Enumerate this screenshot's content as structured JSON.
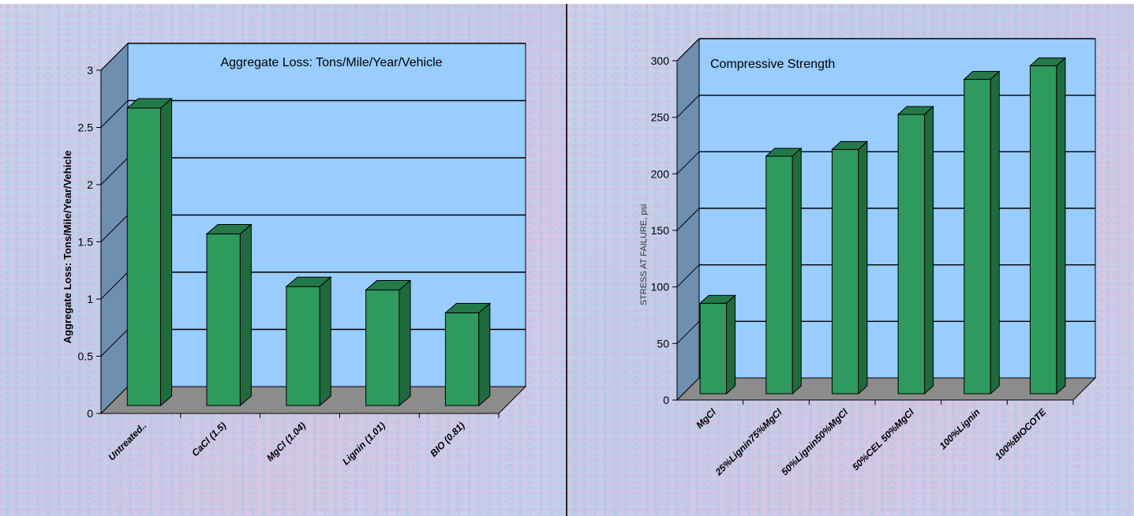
{
  "chart_data": [
    {
      "type": "bar",
      "title": "Aggregate Loss: Tons/Mile/Year/Vehicle",
      "ylabel": "Aggregate Loss: Tons/Mile/Year/Vehicle",
      "xlabel": "",
      "categories": [
        "Untreated..",
        "CaCl (1.5)",
        "MgCl (1.04)",
        "Lignin (1.01)",
        "BIO (0.81)"
      ],
      "values": [
        2.6,
        1.5,
        1.04,
        1.01,
        0.81
      ],
      "ylim": [
        0,
        3
      ],
      "yticks": [
        "0",
        "0.5",
        "1",
        "1.5",
        "2",
        "2.5",
        "3"
      ],
      "grid": true,
      "colors": {
        "bar": "#2e9a5e",
        "bar_top": "#237a48",
        "bar_side": "#1f6b3d",
        "wall": "#99ccff",
        "side_wall": "#6f8fb0",
        "floor": "#8c8c8c"
      }
    },
    {
      "type": "bar",
      "title": "Compressive Strength",
      "ylabel": "STRESS AT FAILURE,  psi",
      "xlabel": "",
      "categories": [
        "MgCl",
        "25%Lignin75%MgCl",
        "50%Lignin50%MgCl",
        "50%CEL  50%MgCl",
        "100%Lignin",
        "100%BIOCOTE"
      ],
      "values": [
        80,
        210,
        216,
        247,
        278,
        290
      ],
      "ylim": [
        0,
        300
      ],
      "yticks": [
        "0",
        "50",
        "100",
        "150",
        "200",
        "250",
        "300"
      ],
      "grid": true,
      "colors": {
        "bar": "#2e9a5e",
        "bar_top": "#237a48",
        "bar_side": "#1f6b3d",
        "wall": "#99ccff",
        "side_wall": "#6f8fb0",
        "floor": "#8c8c8c"
      }
    }
  ]
}
